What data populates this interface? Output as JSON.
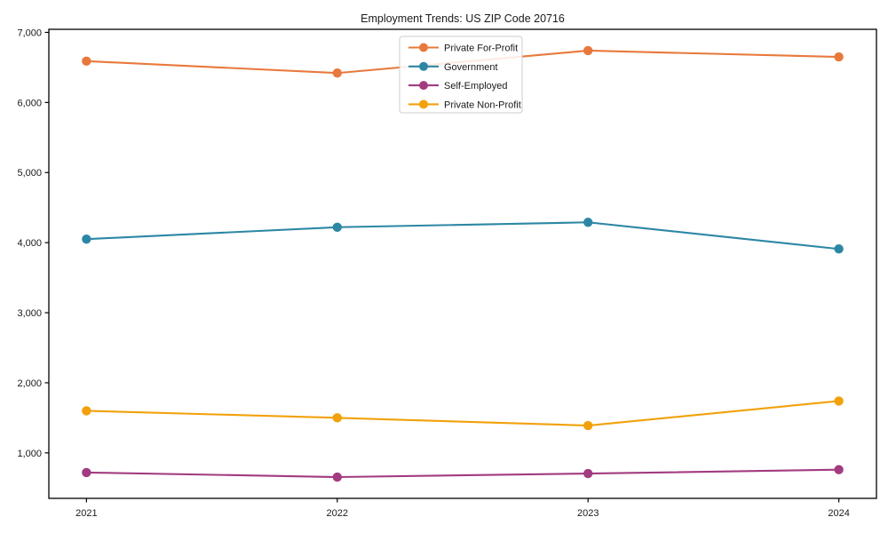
{
  "chart_data": {
    "type": "line",
    "title": "Employment Trends: US ZIP Code 20716",
    "x": [
      2021,
      2022,
      2023,
      2024
    ],
    "x_tick_labels": [
      "2021",
      "2022",
      "2023",
      "2024"
    ],
    "y_ticks": [
      1000,
      2000,
      3000,
      4000,
      5000,
      6000,
      7000
    ],
    "y_tick_labels": [
      "1,000",
      "2,000",
      "3,000",
      "4,000",
      "5,000",
      "6,000",
      "7,000"
    ],
    "xlim": [
      2020.85,
      2024.15
    ],
    "ylim": [
      351,
      7044
    ],
    "grid": false,
    "legend_position": "upper center",
    "xlabel": "",
    "ylabel": "",
    "series": [
      {
        "name": "Private For-Profit",
        "color": "#E8793C",
        "values": [
          6590,
          6420,
          6740,
          6650
        ]
      },
      {
        "name": "Government",
        "color": "#2C87A5",
        "values": [
          4050,
          4220,
          4290,
          3910
        ]
      },
      {
        "name": "Self-Employed",
        "color": "#A23B80",
        "values": [
          720,
          655,
          705,
          760
        ]
      },
      {
        "name": "Private Non-Profit",
        "color": "#F2A10B",
        "values": [
          1600,
          1500,
          1390,
          1740
        ]
      }
    ],
    "axis_color": "#000000",
    "legend_border_color": "#cccccc",
    "legend_bg_color": "rgba(255,255,255,0.85)"
  }
}
